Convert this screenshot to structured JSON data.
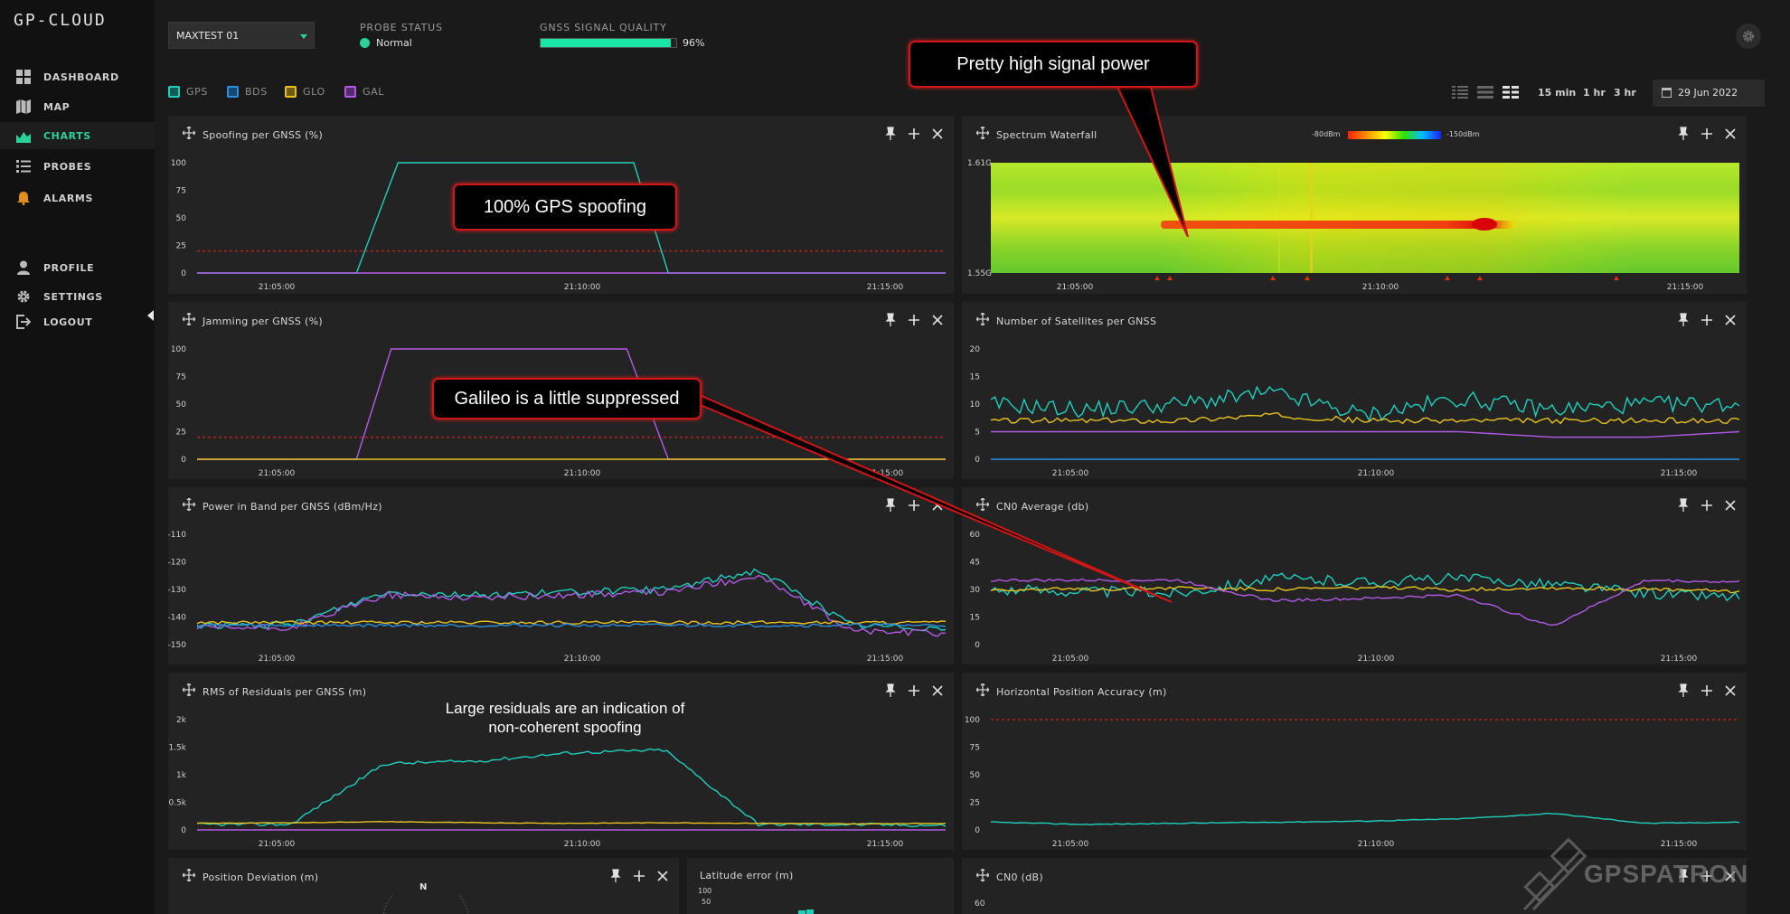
{
  "app": {
    "logo": "GP-CLOUD"
  },
  "sidebar": {
    "items": [
      {
        "label": "DASHBOARD",
        "icon": "dashboard-icon"
      },
      {
        "label": "MAP",
        "icon": "map-icon"
      },
      {
        "label": "CHARTS",
        "icon": "area-chart-icon",
        "active": true
      },
      {
        "label": "PROBES",
        "icon": "list-icon"
      },
      {
        "label": "ALARMS",
        "icon": "bell-icon"
      },
      {
        "label": "PROFILE",
        "icon": "user-icon"
      },
      {
        "label": "SETTINGS",
        "icon": "gear-icon"
      },
      {
        "label": "LOGOUT",
        "icon": "logout-icon"
      }
    ]
  },
  "header": {
    "probe_select_value": "MAXTEST 01",
    "probe_status_label": "PROBE STATUS",
    "probe_status_value": "Normal",
    "signal_quality_label": "GNSS SIGNAL QUALITY",
    "signal_quality_value": "96%",
    "signal_quality_fraction": 0.96
  },
  "legend": [
    {
      "name": "GPS",
      "color": "#1fcfbd"
    },
    {
      "name": "BDS",
      "color": "#2a8fe0"
    },
    {
      "name": "GLO",
      "color": "#e8c21e"
    },
    {
      "name": "GAL",
      "color": "#b15ae6"
    }
  ],
  "range_options": [
    "15 min",
    "1 hr",
    "3 hr"
  ],
  "date": "29 Jun 2022",
  "x_ticks": [
    "21:05:00",
    "21:10:00",
    "21:15:00"
  ],
  "panels": {
    "spoofing": {
      "title": "Spoofing per GNSS (%)"
    },
    "waterfall": {
      "title": "Spectrum Waterfall",
      "scale_min": "-80dBm",
      "scale_max": "-150dBm",
      "y_top": "1.61G",
      "y_bottom": "1.55G"
    },
    "jamming": {
      "title": "Jamming per GNSS (%)"
    },
    "satellites": {
      "title": "Number of Satellites per GNSS"
    },
    "power": {
      "title": "Power in Band per GNSS (dBm/Hz)"
    },
    "cn0avg": {
      "title": "CN0 Average (db)"
    },
    "rms": {
      "title": "RMS of Residuals per GNSS (m)"
    },
    "hpa": {
      "title": "Horizontal Position Accuracy (m)"
    },
    "posdev": {
      "title": "Position Deviation (m)",
      "compass": "N"
    },
    "laterr": {
      "title": "Latitude error (m)"
    },
    "cn0": {
      "title": "CN0 (dB)"
    }
  },
  "callouts": {
    "signal_power": "Pretty high signal power",
    "gps_spoofing": "100% GPS spoofing",
    "galileo": "Galileo is a little suppressed",
    "residuals_line1": "Large residuals are an indication of",
    "residuals_line2": "non-coherent spoofing"
  },
  "watermark": "GPSPATRON",
  "chart_data": [
    {
      "id": "spoofing",
      "type": "line",
      "title": "Spoofing per GNSS (%)",
      "ylim": [
        0,
        100
      ],
      "y_ticks": [
        0,
        25,
        50,
        75,
        100
      ],
      "threshold": 20,
      "x": [
        "21:00:00",
        "21:03:50",
        "21:04:50",
        "21:10:30",
        "21:11:20",
        "21:18:00"
      ],
      "series": [
        {
          "name": "GPS",
          "values": [
            0,
            0,
            100,
            100,
            0,
            0
          ]
        },
        {
          "name": "GAL",
          "values": [
            0,
            0,
            0,
            0,
            0,
            0
          ]
        }
      ]
    },
    {
      "id": "jamming",
      "type": "line",
      "title": "Jamming per GNSS (%)",
      "ylim": [
        0,
        100
      ],
      "y_ticks": [
        0,
        25,
        50,
        75,
        100
      ],
      "threshold": 20,
      "x": [
        "21:00:00",
        "21:03:50",
        "21:04:40",
        "21:10:20",
        "21:11:20",
        "21:18:00"
      ],
      "series": [
        {
          "name": "GAL",
          "values": [
            0,
            0,
            100,
            100,
            0,
            0
          ]
        },
        {
          "name": "GLO",
          "values": [
            0,
            0,
            0,
            0,
            0,
            0
          ]
        }
      ]
    },
    {
      "id": "satellites",
      "type": "line",
      "title": "Number of Satellites per GNSS",
      "ylim": [
        0,
        20
      ],
      "y_ticks": [
        0,
        5,
        10,
        15,
        20
      ],
      "series": [
        {
          "name": "GPS",
          "values": [
            10,
            9,
            10,
            12,
            8,
            11,
            9,
            10,
            10
          ]
        },
        {
          "name": "GLO",
          "values": [
            7,
            7,
            7,
            8,
            7,
            7,
            7,
            7,
            7
          ]
        },
        {
          "name": "GAL",
          "values": [
            5,
            5,
            5,
            5,
            5,
            5,
            4,
            4,
            5
          ]
        },
        {
          "name": "BDS",
          "values": [
            0,
            0,
            0,
            0,
            0,
            0,
            0,
            0,
            0
          ]
        }
      ]
    },
    {
      "id": "power",
      "type": "line",
      "title": "Power in Band per GNSS (dBm/Hz)",
      "ylim": [
        -150,
        -110
      ],
      "y_ticks": [
        -110,
        -120,
        -130,
        -140,
        -150
      ],
      "series": [
        {
          "name": "GPS",
          "values": [
            -143,
            -143,
            -131,
            -132,
            -131,
            -130,
            -123,
            -143,
            -144
          ]
        },
        {
          "name": "GAL",
          "values": [
            -144,
            -144,
            -132,
            -133,
            -132,
            -131,
            -125,
            -145,
            -146
          ]
        },
        {
          "name": "GLO",
          "values": [
            -142,
            -142,
            -142,
            -142,
            -142,
            -142,
            -142,
            -142,
            -142
          ]
        },
        {
          "name": "BDS",
          "values": [
            -143,
            -143,
            -143,
            -143,
            -143,
            -143,
            -143,
            -143,
            -143
          ]
        }
      ]
    },
    {
      "id": "cn0avg",
      "type": "line",
      "title": "CN0 Average (db)",
      "ylim": [
        0,
        60
      ],
      "y_ticks": [
        0,
        15,
        30,
        45,
        60
      ],
      "series": [
        {
          "name": "GPS",
          "values": [
            30,
            29,
            28,
            36,
            34,
            36,
            33,
            28,
            26
          ]
        },
        {
          "name": "GLO",
          "values": [
            30,
            30,
            31,
            30,
            31,
            30,
            31,
            30,
            29
          ]
        },
        {
          "name": "GAL",
          "values": [
            35,
            35,
            35,
            24,
            25,
            27,
            10,
            35,
            34
          ]
        }
      ]
    },
    {
      "id": "rms",
      "type": "line",
      "title": "RMS of Residuals per GNSS (m)",
      "ylim": [
        0,
        2000
      ],
      "y_ticks": [
        "0",
        "0.5k",
        "1k",
        "1.5k",
        "2k"
      ],
      "series": [
        {
          "name": "GPS",
          "values": [
            100,
            100,
            1200,
            1250,
            1400,
            1450,
            100,
            100,
            80
          ]
        },
        {
          "name": "GLO",
          "values": [
            120,
            130,
            150,
            130,
            120,
            130,
            120,
            110,
            120
          ]
        },
        {
          "name": "GAL",
          "values": [
            0,
            0,
            0,
            0,
            0,
            0,
            0,
            0,
            0
          ]
        }
      ]
    },
    {
      "id": "hpa",
      "type": "line",
      "title": "Horizontal Position Accuracy (m)",
      "ylim": [
        0,
        100
      ],
      "y_ticks": [
        0,
        25,
        50,
        75,
        100
      ],
      "threshold": 100,
      "series": [
        {
          "name": "GPS",
          "values": [
            7,
            5,
            6,
            7,
            8,
            10,
            15,
            6,
            7
          ]
        }
      ]
    },
    {
      "id": "laterr",
      "type": "bar",
      "title": "Latitude error (m)",
      "y_ticks": [
        100,
        50
      ]
    },
    {
      "id": "cn0",
      "type": "line",
      "title": "CN0 (dB)",
      "y_ticks": [
        60
      ]
    }
  ]
}
